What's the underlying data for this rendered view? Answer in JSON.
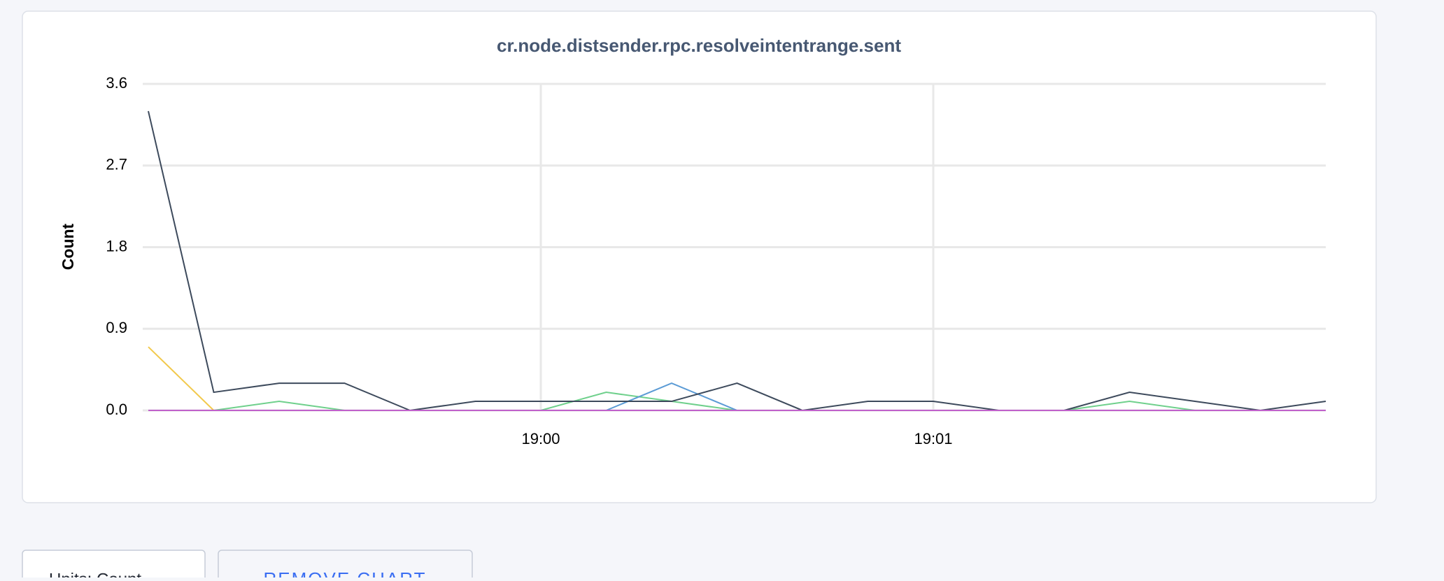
{
  "chart_data": {
    "type": "line",
    "title": "cr.node.distsender.rpc.resolveintentrange.sent",
    "y_label": "Count",
    "categories": [
      null,
      null,
      null,
      null,
      null,
      null,
      "19:00",
      null,
      null,
      null,
      null,
      null,
      "19:01",
      null,
      null,
      null,
      null,
      null,
      null
    ],
    "series": [
      {
        "color": "#f2c94c",
        "values": [
          0.7,
          0,
          0,
          0,
          0,
          0,
          0,
          0,
          0,
          0,
          0,
          0,
          0,
          0,
          0,
          0,
          0,
          0,
          0
        ]
      },
      {
        "color": "#6fd08c",
        "values": [
          null,
          0,
          0.1,
          0,
          0,
          0,
          0,
          0.2,
          0.1,
          0,
          0,
          0,
          0,
          0,
          0,
          0.1,
          0,
          0,
          0
        ]
      },
      {
        "color": "#5b9bd5",
        "values": [
          null,
          null,
          null,
          null,
          null,
          null,
          null,
          0,
          0.3,
          0,
          0,
          0,
          0,
          0,
          0,
          0,
          0,
          0,
          0
        ]
      },
      {
        "color": "#3d4a5c",
        "values": [
          3.3,
          0.2,
          0.3,
          0.3,
          0,
          0.1,
          0.1,
          0.1,
          0.1,
          0.3,
          0,
          0.1,
          0.1,
          0,
          0,
          0.2,
          0.1,
          0,
          0.1
        ]
      },
      {
        "color": "#c061cb",
        "values": [
          0,
          0,
          0,
          0,
          0,
          0,
          0,
          0,
          0,
          0,
          0,
          0,
          0,
          0,
          0,
          0,
          0,
          0,
          0
        ]
      }
    ],
    "ylim": [
      0,
      3.6
    ],
    "yticks": [
      {
        "value": 0,
        "label": "0.0"
      },
      0.9,
      1.8,
      2.7,
      3.6
    ],
    "grid": true
  },
  "controls": {
    "units": "Units: Count",
    "remove": "REMOVE CHART"
  }
}
